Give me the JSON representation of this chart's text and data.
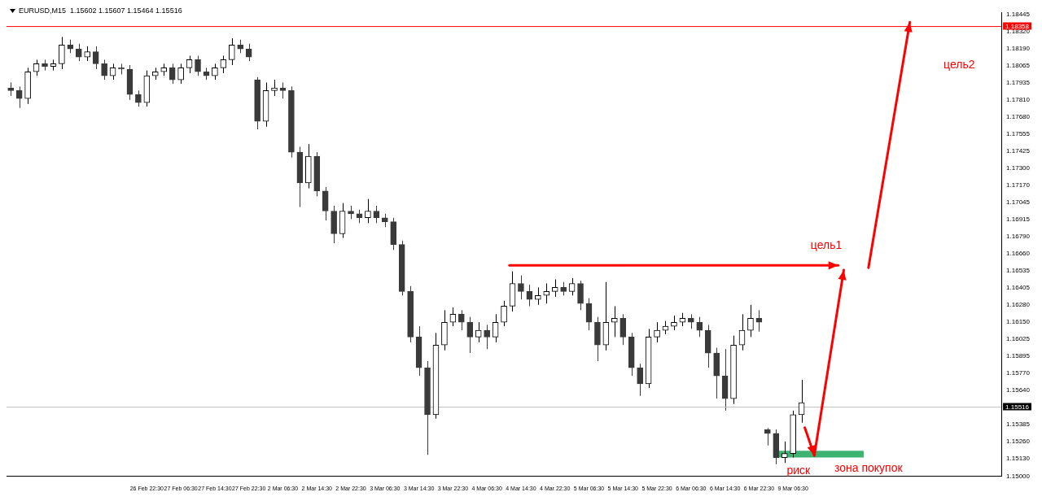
{
  "chart_data": {
    "type": "candlestick",
    "title": "EURUSD,M15  1.15602 1.15607 1.15464 1.15516",
    "categories": [
      null,
      null,
      null,
      null,
      null,
      null,
      null,
      null,
      null,
      null,
      null,
      null,
      null,
      null,
      null,
      null,
      "26 Feb 22:30",
      null,
      null,
      null,
      "27 Feb 06:30",
      null,
      null,
      null,
      "27 Feb 14:30",
      null,
      null,
      null,
      "27 Feb 22:30",
      null,
      null,
      null,
      "2 Mar 06:30",
      null,
      null,
      null,
      "2 Mar 14:30",
      null,
      null,
      null,
      "2 Mar 22:30",
      null,
      null,
      null,
      "3 Mar 06:30",
      null,
      null,
      null,
      "3 Mar 14:30",
      null,
      null,
      null,
      "3 Mar 22:30",
      null,
      null,
      null,
      "4 Mar 06:30",
      null,
      null,
      null,
      "4 Mar 14:30",
      null,
      null,
      null,
      "4 Mar 22:30",
      null,
      null,
      null,
      "5 Mar 06:30",
      null,
      null,
      null,
      "5 Mar 14:30",
      null,
      null,
      null,
      "5 Mar 22:30",
      null,
      null,
      null,
      "6 Mar 06:30",
      null,
      null,
      null,
      "6 Mar 14:30",
      null,
      null,
      null,
      "6 Mar 22:30",
      null,
      null,
      null,
      "9 Mar 06:30",
      null,
      null,
      null,
      null,
      null,
      null,
      null,
      null,
      null,
      null,
      null,
      null,
      null,
      null,
      null,
      null,
      null,
      null,
      null,
      null,
      null,
      null,
      null,
      null
    ],
    "colors": [
      "#3a3a3a",
      "#3a3a3a",
      "#000000",
      "#000000",
      "#3a3a3a",
      "#000000",
      "#000000",
      "#3a3a3a",
      "#3a3a3a",
      "#000000",
      "#3a3a3a",
      "#3a3a3a",
      "#000000",
      "#3a3a3a",
      "#3a3a3a",
      "#3a3a3a",
      "#000000",
      "#000000",
      "#000000",
      "#3a3a3a",
      "#000000",
      "#000000",
      "#3a3a3a",
      "#3a3a3a",
      "#000000",
      "#000000",
      "#000000",
      "#3a3a3a",
      "#3a3a3a",
      "#3a3a3a",
      "#000000",
      "#000000",
      "#3a3a3a",
      "#3a3a3a",
      "#3a3a3a",
      "#000000",
      "#3a3a3a",
      "#3a3a3a",
      "#3a3a3a",
      "#000000",
      "#3a3a3a",
      "#3a3a3a",
      "#000000",
      "#3a3a3a",
      "#3a3a3a",
      "#3a3a3a",
      "#3a3a3a",
      "#3a3a3a",
      "#3a3a3a",
      "#3a3a3a",
      "#000000",
      "#000000",
      "#000000",
      "#3a3a3a",
      "#3a3a3a",
      "#000000",
      "#3a3a3a",
      "#000000",
      "#000000",
      "#000000",
      "#3a3a3a",
      "#3a3a3a",
      "#000000",
      "#000000",
      "#000000",
      "#3a3a3a",
      "#000000",
      "#3a3a3a",
      "#3a3a3a",
      "#3a3a3a",
      "#000000",
      "#000000",
      "#3a3a3a",
      "#3a3a3a",
      "#3a3a3a",
      "#000000",
      "#000000",
      "#000000",
      "#000000",
      "#000000",
      "#3a3a3a",
      "#3a3a3a",
      "#3a3a3a",
      "#3a3a3a",
      "#3a3a3a",
      "#000000",
      "#000000",
      "#000000",
      "#3a3a3a",
      "#3a3a3a",
      "#3a3a3a",
      "#000000",
      "#000000",
      "#000000",
      null,
      null,
      null,
      null,
      null,
      null,
      null,
      null,
      null,
      null,
      null,
      null,
      null,
      null,
      null,
      null,
      null,
      null,
      null,
      null,
      null,
      null,
      null
    ],
    "ohlc": [
      [
        1.179,
        1.1794,
        1.1784,
        1.1788
      ],
      [
        1.1788,
        1.1791,
        1.1775,
        1.1782
      ],
      [
        1.1782,
        1.1805,
        1.1778,
        1.1802
      ],
      [
        1.1802,
        1.1811,
        1.1799,
        1.1808
      ],
      [
        1.1808,
        1.1811,
        1.1803,
        1.1806
      ],
      [
        1.1806,
        1.1811,
        1.1803,
        1.1808
      ],
      [
        1.1808,
        1.1828,
        1.1804,
        1.1822
      ],
      [
        1.1822,
        1.1826,
        1.1816,
        1.1819
      ],
      [
        1.1819,
        1.1823,
        1.181,
        1.1813
      ],
      [
        1.1813,
        1.1821,
        1.181,
        1.1817
      ],
      [
        1.1817,
        1.1821,
        1.1804,
        1.1808
      ],
      [
        1.1808,
        1.1811,
        1.1796,
        1.1799
      ],
      [
        1.1799,
        1.1808,
        1.1796,
        1.1805
      ],
      [
        1.1805,
        1.1808,
        1.18,
        1.1804
      ],
      [
        1.1804,
        1.1807,
        1.1781,
        1.1785
      ],
      [
        1.1785,
        1.1788,
        1.1776,
        1.1779
      ],
      [
        1.1779,
        1.1803,
        1.1776,
        1.1799
      ],
      [
        1.1799,
        1.1805,
        1.1796,
        1.1802
      ],
      [
        1.1802,
        1.1808,
        1.1799,
        1.1805
      ],
      [
        1.1805,
        1.1808,
        1.1793,
        1.1796
      ],
      [
        1.1796,
        1.1808,
        1.1793,
        1.1805
      ],
      [
        1.1805,
        1.1814,
        1.1801,
        1.1811
      ],
      [
        1.1811,
        1.1814,
        1.1799,
        1.1802
      ],
      [
        1.1802,
        1.1805,
        1.1796,
        1.1799
      ],
      [
        1.1799,
        1.1808,
        1.1796,
        1.1805
      ],
      [
        1.1805,
        1.1814,
        1.1801,
        1.1811
      ],
      [
        1.1811,
        1.1827,
        1.1807,
        1.1822
      ],
      [
        1.1822,
        1.1826,
        1.1816,
        1.1819
      ],
      [
        1.1819,
        1.1823,
        1.181,
        1.1813
      ],
      [
        1.1796,
        1.1798,
        1.1759,
        1.1765
      ],
      [
        1.1765,
        1.1794,
        1.1761,
        1.1788
      ],
      [
        1.1788,
        1.1796,
        1.1784,
        1.179
      ],
      [
        1.179,
        1.1794,
        1.1782,
        1.1788
      ],
      [
        1.1788,
        1.1791,
        1.1738,
        1.1742
      ],
      [
        1.1742,
        1.1746,
        1.1701,
        1.1719
      ],
      [
        1.1719,
        1.1748,
        1.1715,
        1.1739
      ],
      [
        1.1739,
        1.1742,
        1.1709,
        1.1713
      ],
      [
        1.1713,
        1.1716,
        1.1691,
        1.1698
      ],
      [
        1.1698,
        1.1702,
        1.1674,
        1.1681
      ],
      [
        1.1681,
        1.1704,
        1.1678,
        1.1698
      ],
      [
        1.1698,
        1.1702,
        1.1692,
        1.1696
      ],
      [
        1.1696,
        1.1699,
        1.1689,
        1.1693
      ],
      [
        1.1693,
        1.1707,
        1.1689,
        1.1698
      ],
      [
        1.1698,
        1.1702,
        1.1689,
        1.1693
      ],
      [
        1.1693,
        1.1696,
        1.1686,
        1.169
      ],
      [
        1.169,
        1.1693,
        1.1669,
        1.1673
      ],
      [
        1.1673,
        1.1676,
        1.1635,
        1.1638
      ],
      [
        1.1638,
        1.1642,
        1.16,
        1.1604
      ],
      [
        1.1604,
        1.1612,
        1.1575,
        1.1581
      ],
      [
        1.1581,
        1.1586,
        1.1516,
        1.1546
      ],
      [
        1.1546,
        1.1607,
        1.1543,
        1.1598
      ],
      [
        1.1598,
        1.1624,
        1.1594,
        1.1615
      ],
      [
        1.1615,
        1.1626,
        1.1612,
        1.1621
      ],
      [
        1.1621,
        1.1624,
        1.1609,
        1.1615
      ],
      [
        1.1615,
        1.1619,
        1.1592,
        1.1604
      ],
      [
        1.1604,
        1.1615,
        1.16,
        1.1609
      ],
      [
        1.1609,
        1.1613,
        1.1595,
        1.1604
      ],
      [
        1.1604,
        1.1621,
        1.16,
        1.1615
      ],
      [
        1.1615,
        1.1631,
        1.1612,
        1.1627
      ],
      [
        1.1627,
        1.1653,
        1.1623,
        1.1644
      ],
      [
        1.1644,
        1.165,
        1.1632,
        1.1638
      ],
      [
        1.1638,
        1.1643,
        1.1627,
        1.1632
      ],
      [
        1.1632,
        1.1641,
        1.1628,
        1.1635
      ],
      [
        1.1635,
        1.1644,
        1.1629,
        1.1638
      ],
      [
        1.1638,
        1.1647,
        1.1634,
        1.1641
      ],
      [
        1.1641,
        1.1645,
        1.1635,
        1.1638
      ],
      [
        1.1638,
        1.1648,
        1.1635,
        1.1644
      ],
      [
        1.1644,
        1.1646,
        1.1624,
        1.1629
      ],
      [
        1.1629,
        1.1633,
        1.1609,
        1.1615
      ],
      [
        1.1615,
        1.1619,
        1.1586,
        1.1598
      ],
      [
        1.1598,
        1.1645,
        1.1594,
        1.1615
      ],
      [
        1.1615,
        1.1627,
        1.1604,
        1.1618
      ],
      [
        1.1618,
        1.1621,
        1.1598,
        1.1604
      ],
      [
        1.1604,
        1.1607,
        1.1575,
        1.1581
      ],
      [
        1.1581,
        1.1584,
        1.156,
        1.1569
      ],
      [
        1.1569,
        1.161,
        1.1566,
        1.1604
      ],
      [
        1.1604,
        1.1615,
        1.16,
        1.1609
      ],
      [
        1.1609,
        1.1616,
        1.1606,
        1.1612
      ],
      [
        1.1612,
        1.162,
        1.1609,
        1.1615
      ],
      [
        1.1615,
        1.1622,
        1.1612,
        1.1618
      ],
      [
        1.1618,
        1.1621,
        1.161,
        1.1615
      ],
      [
        1.1615,
        1.1619,
        1.1604,
        1.1609
      ],
      [
        1.1609,
        1.1613,
        1.1581,
        1.1592
      ],
      [
        1.1592,
        1.1596,
        1.1558,
        1.1575
      ],
      [
        1.1575,
        1.1595,
        1.1549,
        1.1558
      ],
      [
        1.1558,
        1.1605,
        1.1554,
        1.1598
      ],
      [
        1.1598,
        1.1621,
        1.1594,
        1.1609
      ],
      [
        1.1609,
        1.1628,
        1.1604,
        1.1618
      ],
      [
        1.1618,
        1.1624,
        1.1608,
        1.1615
      ],
      [
        1.1535,
        1.1536,
        1.1523,
        1.1532
      ],
      [
        1.1532,
        1.1535,
        1.1509,
        1.1514
      ],
      [
        1.1514,
        1.1526,
        1.151,
        1.1517
      ],
      [
        1.1517,
        1.1549,
        1.1514,
        1.1546
      ],
      [
        1.1546,
        1.1572,
        1.154,
        1.1555
      ],
      null,
      null,
      null,
      null,
      null,
      null,
      null,
      null,
      null,
      null,
      null,
      null,
      null,
      null,
      null,
      null,
      null,
      null,
      null,
      null,
      null,
      null,
      null
    ],
    "ylim": [
      1.15,
      1.1846
    ],
    "yticks": [
      {
        "value": 1.15,
        "label": "1.15000"
      },
      {
        "value": 1.1513,
        "label": "1.15130"
      },
      {
        "value": 1.1526,
        "label": "1.15260"
      },
      {
        "value": 1.15385,
        "label": "1.15385"
      },
      {
        "value": 1.1564,
        "label": "1.15640"
      },
      {
        "value": 1.1577,
        "label": "1.15770"
      },
      {
        "value": 1.15895,
        "label": "1.15895"
      },
      {
        "value": 1.16025,
        "label": "1.16025"
      },
      {
        "value": 1.1615,
        "label": "1.16150"
      },
      {
        "value": 1.1628,
        "label": "1.16280"
      },
      {
        "value": 1.16405,
        "label": "1.16405"
      },
      {
        "value": 1.16535,
        "label": "1.16535"
      },
      {
        "value": 1.1666,
        "label": "1.16660"
      },
      {
        "value": 1.1679,
        "label": "1.16790"
      },
      {
        "value": 1.16915,
        "label": "1.16915"
      },
      {
        "value": 1.17045,
        "label": "1.17045"
      },
      {
        "value": 1.1717,
        "label": "1.17170"
      },
      {
        "value": 1.173,
        "label": "1.17300"
      },
      {
        "value": 1.17425,
        "label": "1.17425"
      },
      {
        "value": 1.17555,
        "label": "1.17555"
      },
      {
        "value": 1.1768,
        "label": "1.17680"
      },
      {
        "value": 1.1781,
        "label": "1.17810"
      },
      {
        "value": 1.17935,
        "label": "1.17935"
      },
      {
        "value": 1.18065,
        "label": "1.18065"
      },
      {
        "value": 1.1819,
        "label": "1.18190"
      },
      {
        "value": 1.1832,
        "label": "1.18320"
      },
      {
        "value": 1.18445,
        "label": "1.18445"
      }
    ],
    "ref_lines": [
      {
        "axis": "y",
        "value": 1.18358,
        "label": "1.18358",
        "color": "#ff0000"
      },
      {
        "axis": "y",
        "value": 1.15516,
        "label": "1.15516",
        "color": "#c0c0c0"
      }
    ],
    "bands": [
      {
        "axis": "y",
        "from": 1.1514,
        "to": 1.1519,
        "label": "зона покупок",
        "color": "#3cb371"
      }
    ],
    "annotations": [
      "цель2",
      "цель1",
      "риск"
    ],
    "grid": false,
    "legend": false
  }
}
